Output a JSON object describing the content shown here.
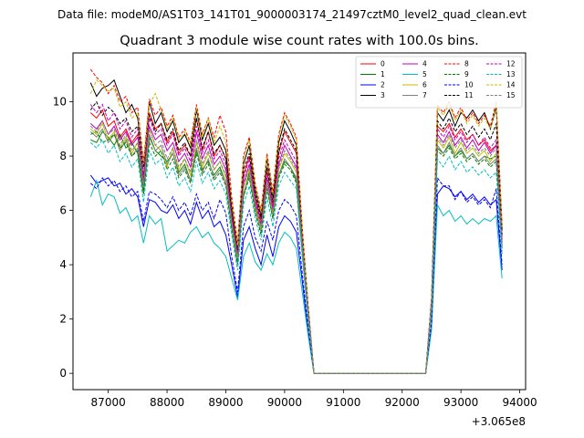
{
  "chart_data": {
    "type": "line",
    "suptitle": "Data file: modeM0/AS1T03_141T01_9000003174_21497cztM0_level2_quad_clean.evt",
    "title": "Quadrant 3 module wise count rates with 100.0s bins.",
    "xlabel": "",
    "ylabel": "",
    "x_offset_label": "+3.065e8",
    "xlim": [
      86400,
      94100
    ],
    "ylim": [
      -0.6,
      11.8
    ],
    "xticks": [
      87000,
      88000,
      89000,
      90000,
      91000,
      92000,
      93000,
      94000
    ],
    "xtick_labels": [
      "87000",
      "88000",
      "89000",
      "90000",
      "91000",
      "92000",
      "93000",
      "94000"
    ],
    "yticks": [
      0,
      2,
      4,
      6,
      8,
      10
    ],
    "ytick_labels": [
      "0",
      "2",
      "4",
      "6",
      "8",
      "10"
    ],
    "grid": false,
    "legend_placement": "top-right",
    "legend_ncols": 4,
    "x": [
      86700,
      86800,
      86900,
      87000,
      87100,
      87200,
      87300,
      87400,
      87500,
      87600,
      87700,
      87800,
      87900,
      88000,
      88100,
      88200,
      88300,
      88400,
      88500,
      88600,
      88700,
      88800,
      88900,
      89000,
      89100,
      89200,
      89300,
      89400,
      89500,
      89600,
      89700,
      89800,
      89900,
      90000,
      90100,
      90200,
      90300,
      90400,
      90500,
      92400,
      92500,
      92600,
      92700,
      92800,
      92900,
      93000,
      93100,
      93200,
      93300,
      93400,
      93500,
      93600,
      93700
    ],
    "series": [
      {
        "name": "0",
        "color": "#ff0000",
        "dash": false,
        "values": [
          9.6,
          9.4,
          9.7,
          9.1,
          9.3,
          8.7,
          9.0,
          8.5,
          8.8,
          7.1,
          9.6,
          9.0,
          9.2,
          8.5,
          8.9,
          8.1,
          8.4,
          8.0,
          9.4,
          8.2,
          8.9,
          8.0,
          8.4,
          7.9,
          5.9,
          4.6,
          7.3,
          8.0,
          6.5,
          5.6,
          7.5,
          6.2,
          8.1,
          8.9,
          8.5,
          8.1,
          5.0,
          2.3,
          0.0,
          0.0,
          2.6,
          9.1,
          8.9,
          9.2,
          8.7,
          9.0,
          8.6,
          8.8,
          8.4,
          8.6,
          8.2,
          8.4,
          5.0
        ]
      },
      {
        "name": "1",
        "color": "#008000",
        "dash": false,
        "values": [
          8.6,
          8.5,
          8.9,
          8.7,
          8.4,
          8.8,
          8.3,
          8.5,
          8.1,
          6.6,
          8.7,
          8.2,
          8.0,
          7.8,
          8.1,
          7.4,
          7.7,
          7.1,
          8.2,
          7.5,
          7.8,
          7.3,
          7.6,
          7.0,
          5.6,
          4.1,
          6.5,
          7.4,
          6.2,
          5.4,
          6.9,
          6.0,
          7.3,
          7.8,
          7.6,
          7.1,
          4.6,
          2.1,
          0.0,
          0.0,
          2.4,
          8.3,
          8.1,
          8.4,
          8.0,
          8.2,
          7.9,
          8.1,
          7.8,
          8.0,
          7.9,
          8.0,
          4.7
        ]
      },
      {
        "name": "2",
        "color": "#0000ff",
        "dash": false,
        "values": [
          7.3,
          7.0,
          7.1,
          7.2,
          6.9,
          7.0,
          6.6,
          6.8,
          6.5,
          5.4,
          6.4,
          6.3,
          6.0,
          5.9,
          6.2,
          5.7,
          6.0,
          5.5,
          6.3,
          5.7,
          6.0,
          5.4,
          5.6,
          5.1,
          4.0,
          2.8,
          4.9,
          5.4,
          4.6,
          4.0,
          5.1,
          4.3,
          5.4,
          5.8,
          5.6,
          5.2,
          3.4,
          1.5,
          0.0,
          0.0,
          1.7,
          6.6,
          6.9,
          6.8,
          6.5,
          6.7,
          6.4,
          6.6,
          6.3,
          6.5,
          6.2,
          6.4,
          3.8
        ]
      },
      {
        "name": "3",
        "color": "#000000",
        "dash": false,
        "values": [
          10.7,
          10.2,
          10.5,
          10.6,
          10.8,
          10.2,
          9.6,
          9.9,
          9.4,
          7.6,
          10.0,
          9.2,
          9.6,
          8.9,
          9.3,
          8.5,
          8.8,
          8.3,
          9.7,
          8.6,
          9.2,
          8.4,
          8.7,
          8.2,
          6.2,
          4.6,
          7.7,
          8.4,
          6.8,
          5.8,
          7.9,
          6.5,
          8.5,
          9.3,
          8.9,
          8.4,
          5.2,
          2.4,
          0.0,
          0.0,
          2.7,
          9.6,
          9.3,
          9.7,
          9.1,
          9.6,
          9.4,
          9.7,
          9.3,
          9.6,
          9.0,
          9.8,
          5.3
        ]
      },
      {
        "name": "4",
        "color": "#bf00bf",
        "dash": false,
        "values": [
          9.2,
          9.0,
          9.3,
          8.8,
          9.1,
          8.6,
          8.9,
          8.4,
          8.7,
          7.0,
          9.1,
          8.6,
          8.8,
          8.2,
          8.5,
          7.8,
          8.1,
          7.6,
          8.9,
          7.9,
          8.4,
          7.7,
          8.0,
          7.5,
          5.7,
          4.3,
          7.0,
          7.7,
          6.3,
          5.4,
          7.2,
          6.0,
          7.7,
          8.4,
          8.0,
          7.6,
          4.8,
          2.2,
          0.0,
          0.0,
          2.5,
          8.8,
          8.5,
          8.9,
          8.4,
          8.7,
          8.3,
          8.6,
          8.2,
          8.5,
          8.1,
          8.4,
          4.8
        ]
      },
      {
        "name": "5",
        "color": "#00bfbf",
        "dash": false,
        "values": [
          6.5,
          7.1,
          6.2,
          6.6,
          6.5,
          5.9,
          6.1,
          5.6,
          5.8,
          4.8,
          5.8,
          5.5,
          5.7,
          4.5,
          4.7,
          4.9,
          4.8,
          5.2,
          5.4,
          5.0,
          5.2,
          4.8,
          4.6,
          4.3,
          3.5,
          2.7,
          4.3,
          4.8,
          4.1,
          3.8,
          4.4,
          4.0,
          4.8,
          5.2,
          5.0,
          4.6,
          3.0,
          1.4,
          0.0,
          0.0,
          1.6,
          6.2,
          5.8,
          6.0,
          5.6,
          5.8,
          5.5,
          5.7,
          5.5,
          5.7,
          5.6,
          5.8,
          3.5
        ]
      },
      {
        "name": "6",
        "color": "#bfbf00",
        "dash": false,
        "values": [
          9.0,
          8.8,
          9.2,
          8.6,
          8.9,
          8.3,
          8.7,
          8.1,
          8.5,
          6.8,
          9.0,
          8.4,
          8.2,
          7.6,
          8.3,
          7.5,
          7.9,
          7.3,
          8.5,
          7.6,
          8.1,
          7.5,
          7.8,
          7.2,
          5.5,
          4.2,
          6.8,
          7.5,
          6.1,
          5.3,
          7.0,
          5.9,
          7.5,
          8.1,
          7.8,
          7.4,
          4.7,
          2.2,
          0.0,
          0.0,
          2.5,
          8.6,
          8.3,
          8.7,
          8.1,
          8.5,
          8.1,
          8.3,
          8.0,
          8.2,
          7.8,
          8.1,
          4.7
        ]
      },
      {
        "name": "7",
        "color": "#808080",
        "dash": false,
        "values": [
          8.9,
          8.7,
          9.0,
          8.5,
          8.8,
          8.2,
          8.6,
          8.0,
          8.3,
          6.7,
          8.8,
          8.2,
          8.4,
          7.7,
          8.1,
          7.3,
          7.6,
          7.1,
          8.3,
          7.4,
          7.9,
          7.2,
          7.5,
          7.0,
          5.4,
          4.0,
          6.6,
          7.3,
          6.0,
          5.2,
          6.9,
          5.7,
          7.3,
          7.9,
          7.6,
          7.2,
          4.6,
          2.1,
          0.0,
          0.0,
          2.4,
          8.4,
          8.1,
          8.5,
          8.0,
          8.3,
          7.9,
          8.1,
          7.8,
          8.0,
          7.7,
          7.9,
          4.6
        ]
      },
      {
        "name": "8",
        "color": "#ff0000",
        "dash": true,
        "values": [
          11.2,
          10.9,
          10.7,
          10.3,
          10.6,
          10.0,
          10.2,
          9.6,
          9.8,
          7.8,
          10.1,
          9.5,
          9.8,
          9.1,
          9.5,
          8.7,
          9.0,
          8.5,
          9.9,
          8.8,
          9.4,
          8.7,
          9.5,
          8.9,
          6.5,
          4.8,
          8.0,
          8.7,
          7.0,
          6.0,
          8.1,
          6.7,
          8.8,
          9.6,
          9.2,
          8.7,
          5.4,
          2.5,
          0.0,
          0.0,
          2.8,
          9.9,
          9.6,
          10.0,
          9.4,
          9.8,
          9.3,
          9.6,
          9.2,
          9.5,
          9.1,
          10.0,
          5.5
        ]
      },
      {
        "name": "9",
        "color": "#008000",
        "dash": true,
        "values": [
          8.8,
          8.9,
          8.5,
          8.6,
          8.8,
          8.3,
          8.5,
          8.0,
          8.2,
          6.7,
          8.5,
          8.0,
          8.2,
          7.5,
          7.9,
          7.2,
          7.5,
          7.0,
          8.1,
          7.3,
          7.7,
          7.1,
          7.4,
          6.9,
          5.3,
          4.0,
          6.5,
          7.2,
          5.9,
          5.1,
          6.8,
          5.7,
          7.2,
          7.7,
          7.5,
          7.0,
          4.5,
          2.1,
          0.0,
          0.0,
          2.4,
          8.2,
          8.0,
          8.3,
          7.9,
          8.1,
          7.8,
          8.0,
          7.7,
          7.9,
          7.6,
          7.8,
          4.5
        ]
      },
      {
        "name": "10",
        "color": "#0000ff",
        "dash": true,
        "values": [
          7.0,
          6.8,
          7.2,
          6.9,
          7.1,
          6.7,
          6.9,
          6.5,
          6.7,
          5.6,
          6.7,
          6.6,
          6.4,
          6.1,
          6.5,
          6.0,
          6.3,
          5.8,
          6.6,
          6.0,
          6.3,
          5.7,
          6.4,
          5.9,
          4.3,
          3.0,
          5.4,
          6.0,
          5.0,
          4.5,
          5.6,
          4.9,
          6.0,
          6.4,
          6.2,
          5.8,
          3.7,
          1.7,
          0.0,
          0.0,
          1.9,
          7.2,
          6.9,
          6.9,
          6.4,
          6.7,
          6.3,
          6.5,
          6.2,
          6.4,
          6.1,
          6.8,
          4.0
        ]
      },
      {
        "name": "11",
        "color": "#000000",
        "dash": true,
        "values": [
          9.7,
          10.0,
          9.5,
          9.8,
          9.6,
          9.2,
          9.4,
          8.9,
          9.1,
          7.3,
          9.5,
          8.9,
          9.2,
          8.6,
          9.0,
          8.2,
          8.5,
          8.0,
          9.4,
          8.3,
          8.9,
          8.1,
          8.4,
          7.9,
          6.0,
          4.5,
          7.5,
          8.1,
          6.6,
          5.7,
          7.6,
          6.3,
          8.2,
          9.0,
          8.6,
          8.2,
          5.1,
          2.4,
          0.0,
          0.0,
          2.6,
          9.3,
          9.0,
          9.4,
          8.9,
          9.2,
          8.8,
          9.1,
          8.7,
          9.0,
          8.6,
          9.2,
          5.1
        ]
      },
      {
        "name": "12",
        "color": "#bf00bf",
        "dash": true,
        "values": [
          9.9,
          9.6,
          9.9,
          9.3,
          9.6,
          9.0,
          9.3,
          8.7,
          9.0,
          7.2,
          9.4,
          8.8,
          9.0,
          8.4,
          8.8,
          8.0,
          8.3,
          7.8,
          9.1,
          8.1,
          8.6,
          7.9,
          8.2,
          7.7,
          5.8,
          4.4,
          7.2,
          7.9,
          6.4,
          5.5,
          7.4,
          6.1,
          7.9,
          8.6,
          8.2,
          7.8,
          4.9,
          2.3,
          0.0,
          0.0,
          2.5,
          9.0,
          8.7,
          9.1,
          8.6,
          8.9,
          8.5,
          8.8,
          8.4,
          8.7,
          8.3,
          8.6,
          4.9
        ]
      },
      {
        "name": "13",
        "color": "#00bfbf",
        "dash": true,
        "values": [
          8.5,
          8.3,
          8.6,
          8.1,
          8.4,
          7.8,
          8.1,
          7.6,
          7.9,
          6.3,
          8.2,
          7.7,
          7.9,
          7.2,
          7.6,
          6.9,
          7.2,
          6.7,
          7.8,
          7.0,
          7.4,
          6.8,
          7.1,
          6.6,
          5.1,
          3.8,
          6.2,
          6.9,
          5.7,
          4.9,
          6.5,
          5.4,
          6.9,
          7.4,
          7.1,
          6.8,
          4.3,
          2.0,
          0.0,
          0.0,
          2.3,
          7.9,
          7.6,
          8.0,
          7.5,
          7.8,
          7.4,
          7.6,
          7.3,
          7.5,
          7.2,
          7.4,
          4.4
        ]
      },
      {
        "name": "14",
        "color": "#bfbf00",
        "dash": true,
        "values": [
          10.3,
          10.8,
          10.6,
          10.4,
          10.5,
          9.8,
          10.0,
          9.4,
          9.6,
          7.7,
          9.9,
          10.3,
          9.7,
          9.0,
          9.4,
          8.6,
          8.9,
          8.4,
          9.8,
          8.7,
          9.4,
          8.5,
          9.1,
          8.5,
          6.3,
          4.7,
          7.9,
          8.6,
          6.9,
          5.9,
          8.0,
          6.6,
          8.7,
          9.5,
          9.1,
          8.6,
          5.3,
          2.4,
          0.0,
          0.0,
          2.7,
          9.8,
          9.5,
          9.9,
          9.3,
          9.7,
          9.2,
          9.5,
          9.1,
          9.4,
          9.0,
          9.9,
          5.4
        ]
      },
      {
        "name": "15",
        "color": "#808080",
        "dash": true,
        "values": [
          9.1,
          8.9,
          9.3,
          8.8,
          9.0,
          8.4,
          8.8,
          8.2,
          8.5,
          6.9,
          9.0,
          8.4,
          8.6,
          7.9,
          8.3,
          7.6,
          7.9,
          7.4,
          8.6,
          7.7,
          8.2,
          7.5,
          7.8,
          7.3,
          5.6,
          4.2,
          6.9,
          7.6,
          6.2,
          5.4,
          7.1,
          5.9,
          7.6,
          8.2,
          7.9,
          7.5,
          4.7,
          2.2,
          0.0,
          0.0,
          2.5,
          8.7,
          8.4,
          8.8,
          8.3,
          8.6,
          8.2,
          8.4,
          8.1,
          8.3,
          8.0,
          8.3,
          4.8
        ]
      }
    ]
  }
}
